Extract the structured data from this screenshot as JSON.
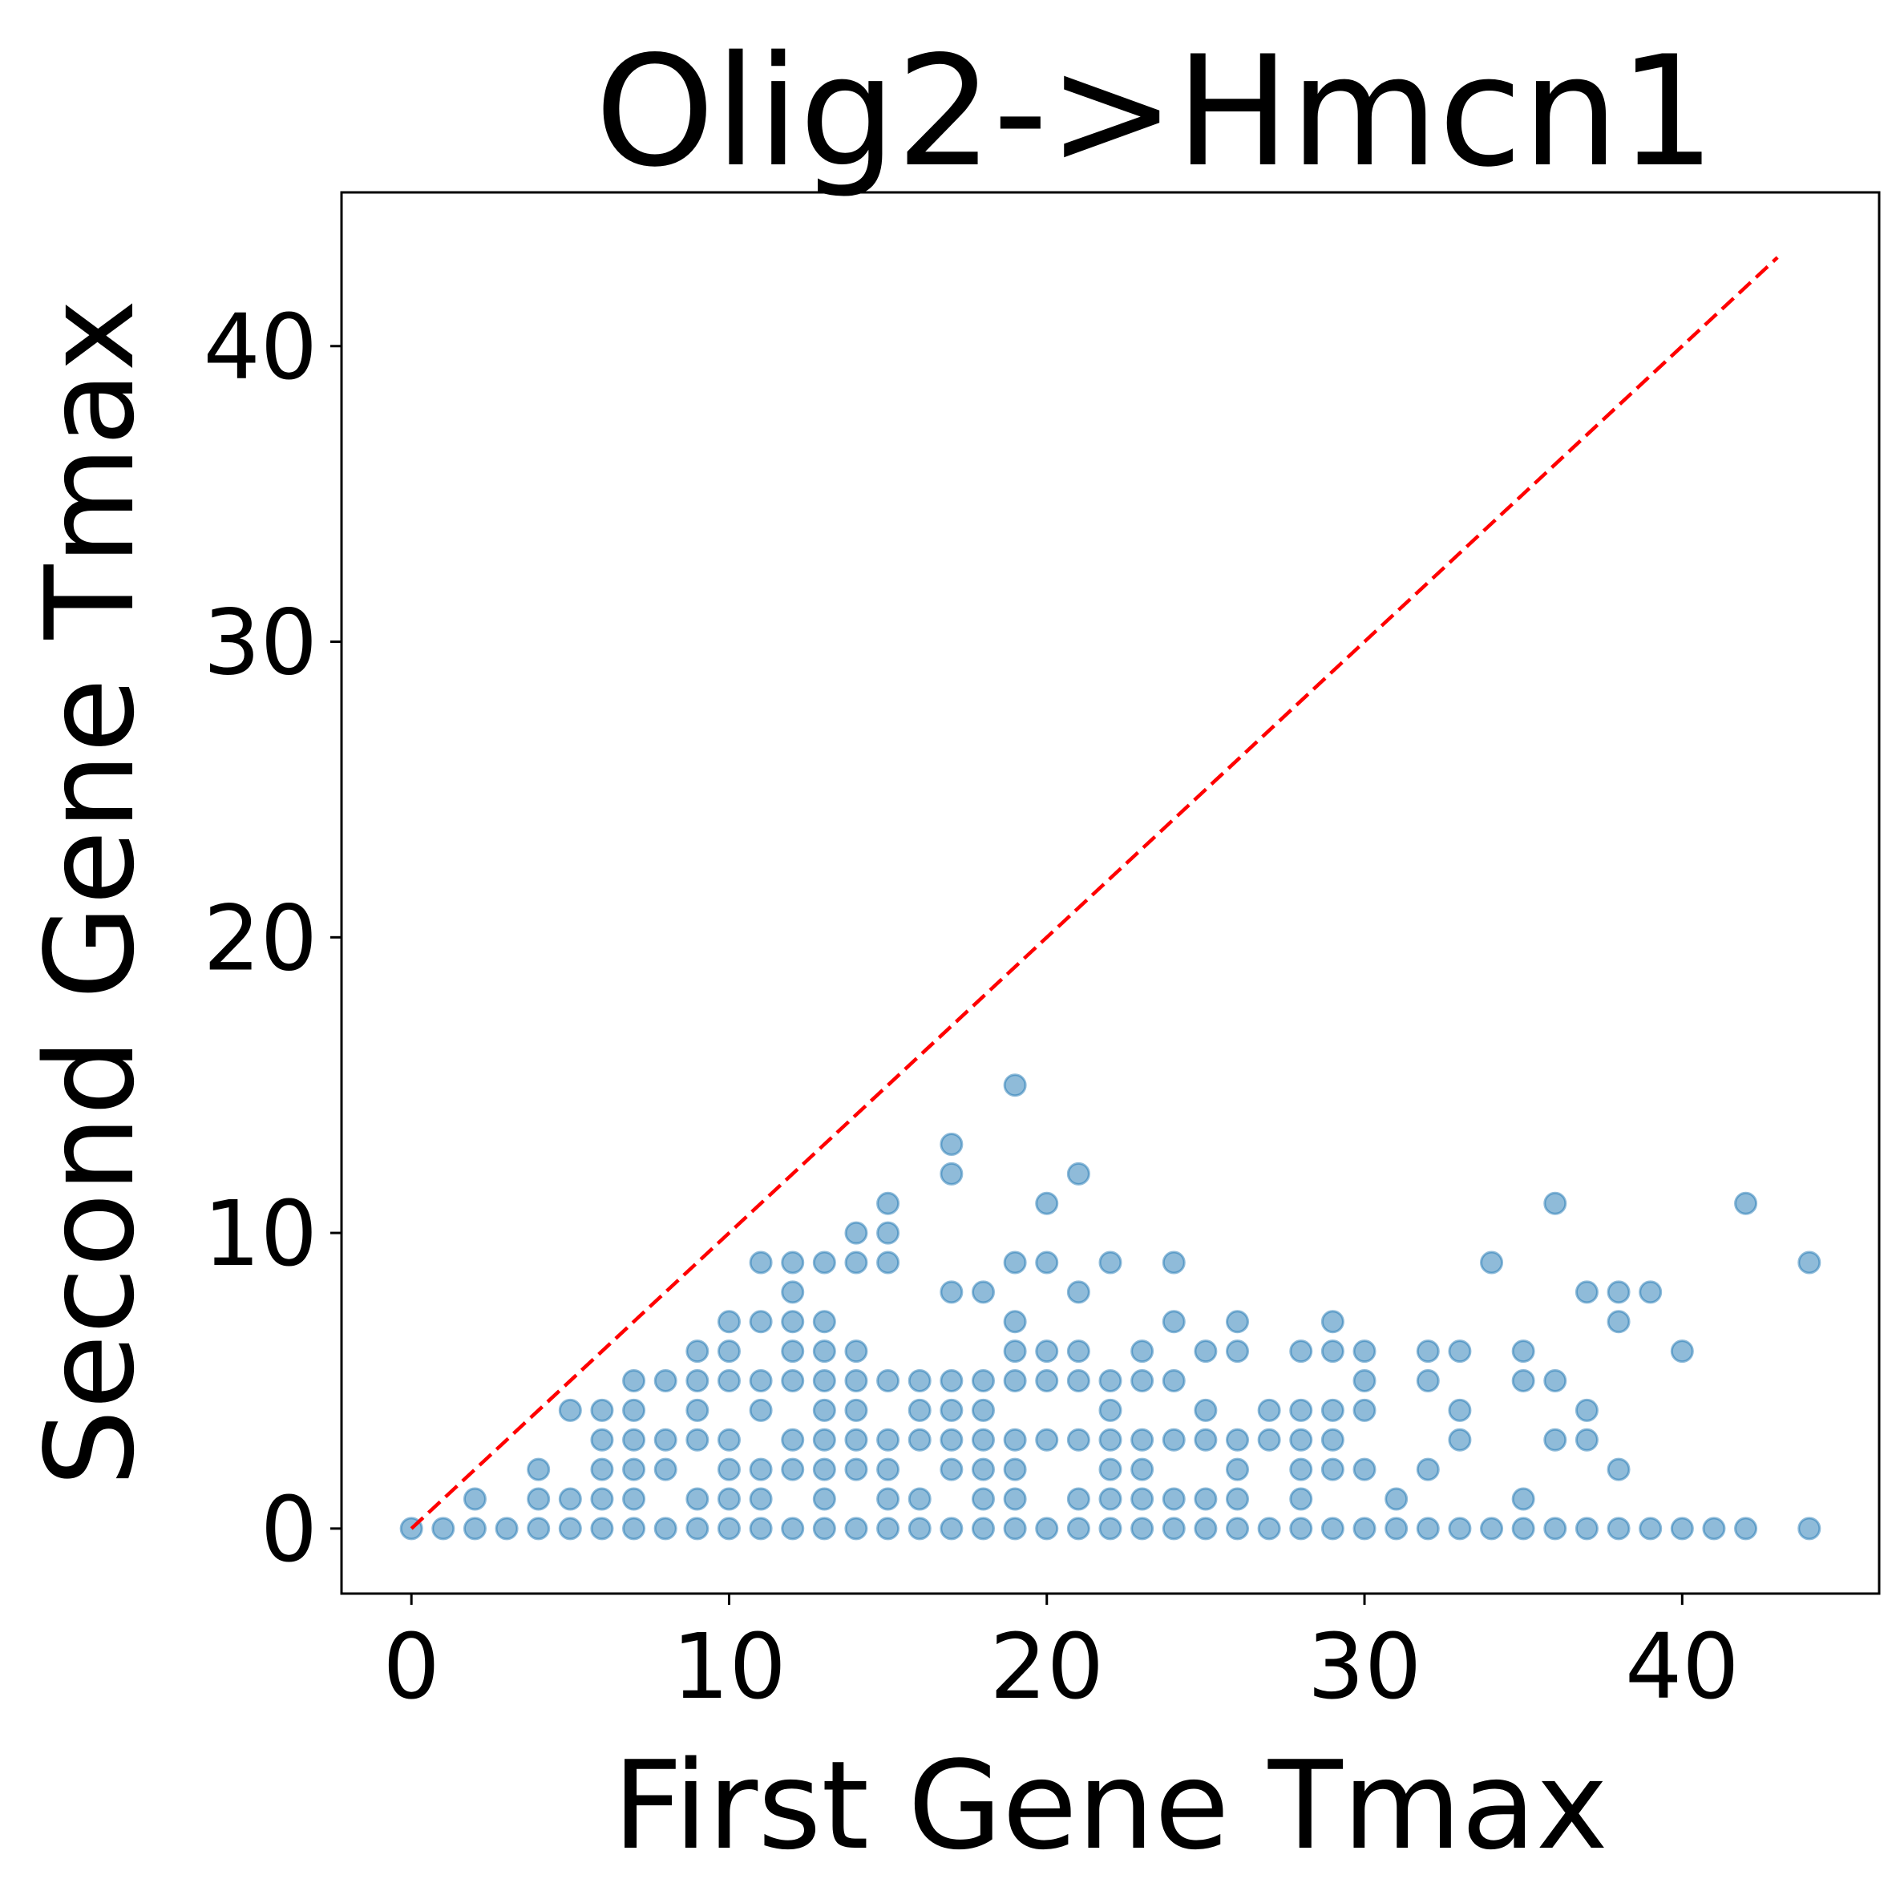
{
  "chart_data": {
    "type": "scatter",
    "title": "Olig2->Hmcn1",
    "xlabel": "First Gene Tmax",
    "ylabel": "Second Gene Tmax",
    "xlim": [
      -2.2,
      46.2
    ],
    "ylim": [
      -2.2,
      45.2
    ],
    "xticks": [
      0,
      10,
      20,
      30,
      40
    ],
    "yticks": [
      0,
      10,
      20,
      30,
      40
    ],
    "grid": false,
    "legend": "none",
    "reference_line": {
      "style": "dashed",
      "color": "#ff0000",
      "from": [
        0,
        0
      ],
      "to": [
        43,
        43
      ]
    },
    "marker_color": "#1f77b4",
    "marker_alpha": 0.5,
    "series": [
      {
        "points": [
          [
            0,
            0
          ],
          [
            1,
            0
          ],
          [
            2,
            0
          ],
          [
            2,
            1
          ],
          [
            3,
            0
          ],
          [
            4,
            0
          ],
          [
            4,
            1
          ],
          [
            4,
            2
          ],
          [
            5,
            0
          ],
          [
            5,
            1
          ],
          [
            5,
            4
          ],
          [
            6,
            0
          ],
          [
            6,
            1
          ],
          [
            6,
            2
          ],
          [
            6,
            3
          ],
          [
            6,
            4
          ],
          [
            7,
            0
          ],
          [
            7,
            1
          ],
          [
            7,
            2
          ],
          [
            7,
            3
          ],
          [
            7,
            4
          ],
          [
            7,
            5
          ],
          [
            8,
            0
          ],
          [
            8,
            2
          ],
          [
            8,
            3
          ],
          [
            8,
            5
          ],
          [
            9,
            0
          ],
          [
            9,
            1
          ],
          [
            9,
            3
          ],
          [
            9,
            4
          ],
          [
            9,
            5
          ],
          [
            9,
            6
          ],
          [
            10,
            0
          ],
          [
            10,
            1
          ],
          [
            10,
            2
          ],
          [
            10,
            3
          ],
          [
            10,
            5
          ],
          [
            10,
            6
          ],
          [
            10,
            7
          ],
          [
            11,
            0
          ],
          [
            11,
            1
          ],
          [
            11,
            2
          ],
          [
            11,
            4
          ],
          [
            11,
            5
          ],
          [
            11,
            7
          ],
          [
            11,
            9
          ],
          [
            12,
            0
          ],
          [
            12,
            2
          ],
          [
            12,
            3
          ],
          [
            12,
            5
          ],
          [
            12,
            6
          ],
          [
            12,
            7
          ],
          [
            12,
            8
          ],
          [
            12,
            9
          ],
          [
            13,
            0
          ],
          [
            13,
            1
          ],
          [
            13,
            2
          ],
          [
            13,
            3
          ],
          [
            13,
            4
          ],
          [
            13,
            5
          ],
          [
            13,
            6
          ],
          [
            13,
            7
          ],
          [
            13,
            9
          ],
          [
            14,
            0
          ],
          [
            14,
            2
          ],
          [
            14,
            3
          ],
          [
            14,
            4
          ],
          [
            14,
            5
          ],
          [
            14,
            6
          ],
          [
            14,
            9
          ],
          [
            14,
            10
          ],
          [
            15,
            0
          ],
          [
            15,
            1
          ],
          [
            15,
            2
          ],
          [
            15,
            3
          ],
          [
            15,
            5
          ],
          [
            15,
            9
          ],
          [
            15,
            10
          ],
          [
            15,
            11
          ],
          [
            16,
            0
          ],
          [
            16,
            1
          ],
          [
            16,
            3
          ],
          [
            16,
            4
          ],
          [
            16,
            5
          ],
          [
            17,
            0
          ],
          [
            17,
            2
          ],
          [
            17,
            3
          ],
          [
            17,
            4
          ],
          [
            17,
            5
          ],
          [
            17,
            8
          ],
          [
            17,
            12
          ],
          [
            17,
            13
          ],
          [
            18,
            0
          ],
          [
            18,
            1
          ],
          [
            18,
            2
          ],
          [
            18,
            3
          ],
          [
            18,
            4
          ],
          [
            18,
            5
          ],
          [
            18,
            8
          ],
          [
            19,
            0
          ],
          [
            19,
            1
          ],
          [
            19,
            2
          ],
          [
            19,
            3
          ],
          [
            19,
            5
          ],
          [
            19,
            6
          ],
          [
            19,
            7
          ],
          [
            19,
            9
          ],
          [
            19,
            15
          ],
          [
            20,
            0
          ],
          [
            20,
            3
          ],
          [
            20,
            5
          ],
          [
            20,
            6
          ],
          [
            20,
            9
          ],
          [
            20,
            11
          ],
          [
            21,
            0
          ],
          [
            21,
            1
          ],
          [
            21,
            3
          ],
          [
            21,
            5
          ],
          [
            21,
            6
          ],
          [
            21,
            8
          ],
          [
            21,
            12
          ],
          [
            22,
            0
          ],
          [
            22,
            1
          ],
          [
            22,
            2
          ],
          [
            22,
            3
          ],
          [
            22,
            4
          ],
          [
            22,
            5
          ],
          [
            22,
            9
          ],
          [
            23,
            0
          ],
          [
            23,
            1
          ],
          [
            23,
            2
          ],
          [
            23,
            3
          ],
          [
            23,
            5
          ],
          [
            23,
            6
          ],
          [
            24,
            0
          ],
          [
            24,
            1
          ],
          [
            24,
            3
          ],
          [
            24,
            5
          ],
          [
            24,
            7
          ],
          [
            24,
            9
          ],
          [
            25,
            0
          ],
          [
            25,
            1
          ],
          [
            25,
            3
          ],
          [
            25,
            4
          ],
          [
            25,
            6
          ],
          [
            26,
            0
          ],
          [
            26,
            1
          ],
          [
            26,
            2
          ],
          [
            26,
            3
          ],
          [
            26,
            6
          ],
          [
            26,
            7
          ],
          [
            27,
            0
          ],
          [
            27,
            3
          ],
          [
            27,
            4
          ],
          [
            28,
            0
          ],
          [
            28,
            1
          ],
          [
            28,
            2
          ],
          [
            28,
            3
          ],
          [
            28,
            4
          ],
          [
            28,
            6
          ],
          [
            29,
            0
          ],
          [
            29,
            2
          ],
          [
            29,
            3
          ],
          [
            29,
            4
          ],
          [
            29,
            6
          ],
          [
            29,
            7
          ],
          [
            30,
            0
          ],
          [
            30,
            2
          ],
          [
            30,
            4
          ],
          [
            30,
            5
          ],
          [
            30,
            6
          ],
          [
            31,
            0
          ],
          [
            31,
            1
          ],
          [
            32,
            0
          ],
          [
            32,
            2
          ],
          [
            32,
            5
          ],
          [
            32,
            6
          ],
          [
            33,
            0
          ],
          [
            33,
            3
          ],
          [
            33,
            4
          ],
          [
            33,
            6
          ],
          [
            34,
            0
          ],
          [
            34,
            9
          ],
          [
            35,
            0
          ],
          [
            35,
            1
          ],
          [
            35,
            5
          ],
          [
            35,
            6
          ],
          [
            36,
            0
          ],
          [
            36,
            3
          ],
          [
            36,
            5
          ],
          [
            36,
            11
          ],
          [
            37,
            0
          ],
          [
            37,
            3
          ],
          [
            37,
            4
          ],
          [
            37,
            8
          ],
          [
            38,
            0
          ],
          [
            38,
            2
          ],
          [
            38,
            7
          ],
          [
            38,
            8
          ],
          [
            39,
            0
          ],
          [
            39,
            8
          ],
          [
            40,
            0
          ],
          [
            40,
            6
          ],
          [
            41,
            0
          ],
          [
            42,
            0
          ],
          [
            42,
            11
          ],
          [
            44,
            0
          ],
          [
            44,
            9
          ]
        ]
      }
    ]
  }
}
